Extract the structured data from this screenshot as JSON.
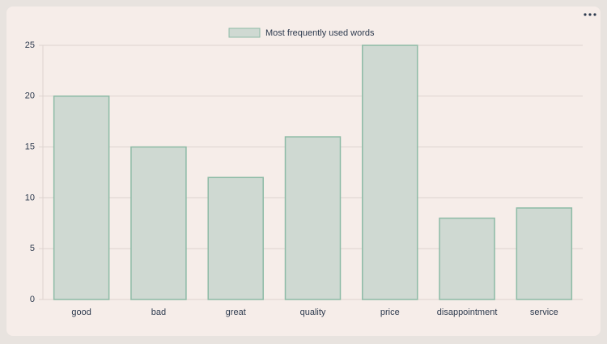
{
  "chart_data": {
    "type": "bar",
    "categories": [
      "good",
      "bad",
      "great",
      "quality",
      "price",
      "disappointment",
      "service"
    ],
    "series": [
      {
        "name": "Most frequently used words",
        "color": "#cfd9d2",
        "border_color": "#8dbba6",
        "values": [
          20,
          15,
          12,
          16,
          25,
          8,
          9
        ]
      }
    ],
    "ylim": [
      0,
      25
    ],
    "yticks": [
      0,
      5,
      10,
      15,
      20,
      25
    ],
    "grid": true,
    "legend": "top"
  }
}
